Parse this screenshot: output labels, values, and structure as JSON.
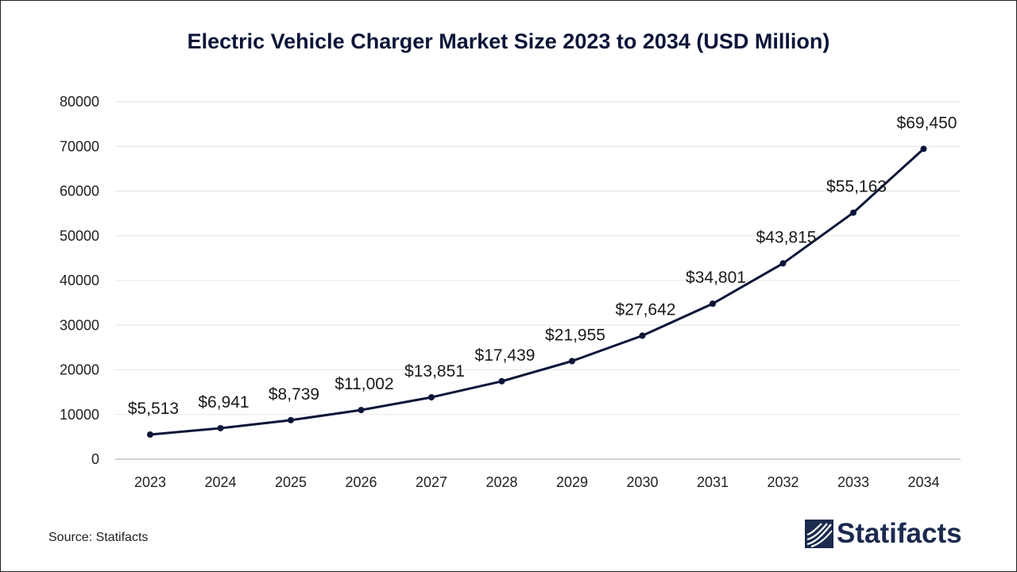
{
  "page": {
    "source_note": "Source: Statifacts",
    "brand_name": "Statifacts"
  },
  "colors": {
    "line": "#0b1538",
    "title": "#0b1538",
    "grid": "#e6e6e6",
    "axis": "#bfbfbf",
    "brand": "#1b2a4e"
  },
  "chart_data": {
    "type": "line",
    "title": "Electric Vehicle Charger Market Size 2023 to 2034 (USD Million)",
    "xlabel": "",
    "ylabel": "",
    "categories": [
      "2023",
      "2024",
      "2025",
      "2026",
      "2027",
      "2028",
      "2029",
      "2030",
      "2031",
      "2032",
      "2033",
      "2034"
    ],
    "series": [
      {
        "name": "Market Size (USD Million)",
        "values": [
          5513,
          6941,
          8739,
          11002,
          13851,
          17439,
          21955,
          27642,
          34801,
          43815,
          55163,
          69450
        ],
        "data_labels": [
          "$5,513",
          "$6,941",
          "$8,739",
          "$11,002",
          "$13,851",
          "$17,439",
          "$21,955",
          "$27,642",
          "$34,801",
          "$43,815",
          "$55,163",
          "$69,450"
        ]
      }
    ],
    "ylim": [
      0,
      80000
    ],
    "yticks": [
      "0",
      "10000",
      "20000",
      "30000",
      "40000",
      "50000",
      "60000",
      "70000",
      "80000"
    ],
    "grid": true,
    "legend": "none"
  }
}
